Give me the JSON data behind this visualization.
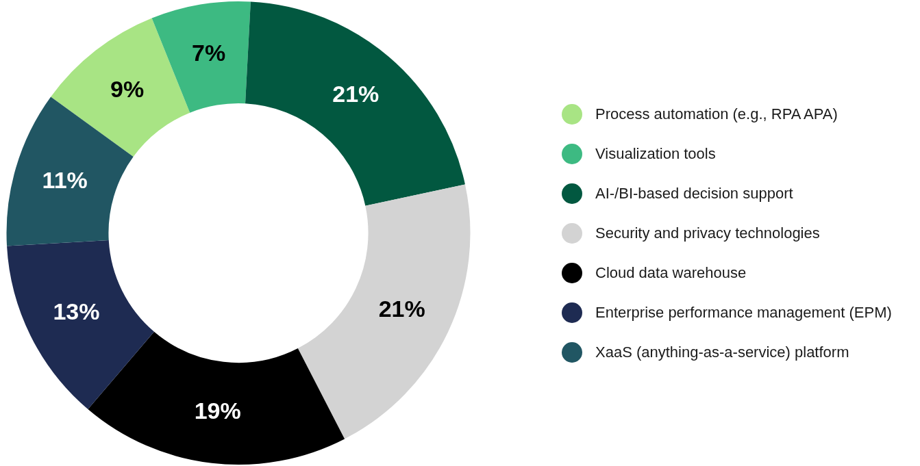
{
  "chart_data": {
    "type": "donut",
    "categories": [
      "Process automation (e.g., RPA APA)",
      "Visualization tools",
      "AI-/BI-based decision support",
      "Security and privacy technologies",
      "Cloud data warehouse",
      "Enterprise performance management (EPM)",
      "XaaS (anything-as-a-service) platform"
    ],
    "values": [
      9,
      7,
      21,
      21,
      19,
      13,
      11
    ],
    "colors": [
      "#a8e484",
      "#3dba82",
      "#025840",
      "#d3d3d3",
      "#000000",
      "#1e2b52",
      "#215663"
    ],
    "value_labels": [
      "9%",
      "7%",
      "21%",
      "21%",
      "19%",
      "13%",
      "11%"
    ],
    "legend": "right"
  }
}
